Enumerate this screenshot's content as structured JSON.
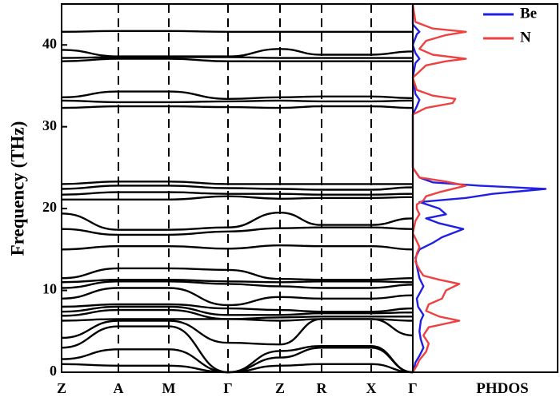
{
  "chart_data": [
    {
      "type": "line",
      "subtype": "phonon-band-structure",
      "ylabel": "Frequency (THz)",
      "ylim": [
        0,
        45
      ],
      "yticks": [
        0,
        10,
        20,
        30,
        40
      ],
      "x_path": [
        "Z",
        "A",
        "M",
        "Γ",
        "Z",
        "R",
        "X",
        "Γ"
      ],
      "high_symmetry_lines": "dashed",
      "line_color": "#000000",
      "bands": [
        {
          "values": [
            1.0,
            0.8,
            0.8,
            0.0,
            0.8,
            1.0,
            1.0,
            0.0
          ]
        },
        {
          "values": [
            1.6,
            2.8,
            2.8,
            0.0,
            1.8,
            3.0,
            3.0,
            0.0
          ]
        },
        {
          "values": [
            3.0,
            5.6,
            5.6,
            0.0,
            2.6,
            3.2,
            3.2,
            0.0
          ]
        },
        {
          "values": [
            4.2,
            6.3,
            6.3,
            3.6,
            3.4,
            6.5,
            6.5,
            4.5
          ]
        },
        {
          "values": [
            6.3,
            6.5,
            6.5,
            6.5,
            6.3,
            6.5,
            6.5,
            6.3
          ]
        },
        {
          "values": [
            6.9,
            7.6,
            7.6,
            6.5,
            6.7,
            6.8,
            6.8,
            6.8
          ]
        },
        {
          "values": [
            7.4,
            8.0,
            8.0,
            7.0,
            7.0,
            7.2,
            7.2,
            7.3
          ]
        },
        {
          "values": [
            8.0,
            8.3,
            8.3,
            7.8,
            7.6,
            7.4,
            7.4,
            7.8
          ]
        },
        {
          "values": [
            9.0,
            10.3,
            10.3,
            8.2,
            9.2,
            9.0,
            9.0,
            9.4
          ]
        },
        {
          "values": [
            10.3,
            11.1,
            11.1,
            10.8,
            10.5,
            10.3,
            10.3,
            10.7
          ]
        },
        {
          "values": [
            11.0,
            11.3,
            11.3,
            11.1,
            11.0,
            11.1,
            11.1,
            11.0
          ]
        },
        {
          "values": [
            11.5,
            12.7,
            12.7,
            12.5,
            11.4,
            11.3,
            11.3,
            11.5
          ]
        },
        {
          "values": [
            15.0,
            15.4,
            15.4,
            15.1,
            15.5,
            15.4,
            15.4,
            15.0
          ]
        },
        {
          "values": [
            17.5,
            16.8,
            16.8,
            17.2,
            17.6,
            17.7,
            17.7,
            17.5
          ]
        },
        {
          "values": [
            19.4,
            17.4,
            17.4,
            17.7,
            19.5,
            18.0,
            18.0,
            18.8
          ]
        },
        {
          "values": [
            21.1,
            21.1,
            21.1,
            21.5,
            21.2,
            21.3,
            21.3,
            21.4
          ]
        },
        {
          "values": [
            21.7,
            22.0,
            22.0,
            21.8,
            21.8,
            21.7,
            21.7,
            21.8
          ]
        },
        {
          "values": [
            22.4,
            22.8,
            22.8,
            22.5,
            22.4,
            22.3,
            22.3,
            22.6
          ]
        },
        {
          "values": [
            23.0,
            23.3,
            23.3,
            23.0,
            23.0,
            23.0,
            23.0,
            23.0
          ]
        },
        {
          "values": [
            32.3,
            32.5,
            32.5,
            32.4,
            32.3,
            32.5,
            32.5,
            32.3
          ]
        },
        {
          "values": [
            33.2,
            33.0,
            33.0,
            33.1,
            33.2,
            33.1,
            33.1,
            33.2
          ]
        },
        {
          "values": [
            33.6,
            34.3,
            34.3,
            33.4,
            33.6,
            33.7,
            33.7,
            33.5
          ]
        },
        {
          "values": [
            38.0,
            38.3,
            38.3,
            38.0,
            38.0,
            38.0,
            38.0,
            38.0
          ]
        },
        {
          "values": [
            38.4,
            38.5,
            38.5,
            38.5,
            38.4,
            38.4,
            38.4,
            38.4
          ]
        },
        {
          "values": [
            39.4,
            38.6,
            38.6,
            38.6,
            39.5,
            38.8,
            38.8,
            39.2
          ]
        },
        {
          "values": [
            41.6,
            41.7,
            41.7,
            41.6,
            41.6,
            41.6,
            41.6,
            41.6
          ]
        }
      ]
    },
    {
      "type": "line",
      "subtype": "phonon-density-of-states",
      "xlabel": "PHDOS",
      "ylim": [
        0,
        45
      ],
      "legend_position": "top-right",
      "series": [
        {
          "name": "Be",
          "color": "#1f1fe6",
          "points": [
            [
              0,
              0
            ],
            [
              0.01,
              0.5
            ],
            [
              0.02,
              1.2
            ],
            [
              0.05,
              2
            ],
            [
              0.08,
              3
            ],
            [
              0.06,
              4
            ],
            [
              0.05,
              5
            ],
            [
              0.06,
              6.3
            ],
            [
              0.08,
              7
            ],
            [
              0.04,
              8
            ],
            [
              0.03,
              9
            ],
            [
              0.08,
              10.5
            ],
            [
              0.05,
              11.5
            ],
            [
              0.03,
              13
            ],
            [
              0.02,
              14
            ],
            [
              0.05,
              15
            ],
            [
              0.15,
              15.8
            ],
            [
              0.22,
              16.5
            ],
            [
              0.38,
              17.5
            ],
            [
              0.2,
              18.2
            ],
            [
              0.1,
              18.8
            ],
            [
              0.25,
              19.3
            ],
            [
              0.2,
              20
            ],
            [
              0.05,
              20.8
            ],
            [
              0.4,
              21.3
            ],
            [
              0.6,
              21.8
            ],
            [
              1.0,
              22.4
            ],
            [
              0.5,
              22.8
            ],
            [
              0.15,
              23.2
            ],
            [
              0.05,
              23.8
            ],
            [
              0.0,
              25
            ],
            [
              0.0,
              31.5
            ],
            [
              0.03,
              32.5
            ],
            [
              0.05,
              33.3
            ],
            [
              0.02,
              34
            ],
            [
              0.0,
              36
            ],
            [
              0.02,
              37.8
            ],
            [
              0.05,
              38.3
            ],
            [
              0.02,
              39
            ],
            [
              0.0,
              40
            ],
            [
              0.03,
              41.3
            ],
            [
              0.05,
              41.6
            ],
            [
              0.0,
              42.5
            ],
            [
              0.0,
              45
            ]
          ]
        },
        {
          "name": "N",
          "color": "#ee4040",
          "points": [
            [
              0,
              0
            ],
            [
              0.03,
              0.8
            ],
            [
              0.05,
              1.5
            ],
            [
              0.1,
              2.5
            ],
            [
              0.12,
              3.5
            ],
            [
              0.08,
              4.5
            ],
            [
              0.12,
              5.5
            ],
            [
              0.35,
              6.3
            ],
            [
              0.2,
              6.8
            ],
            [
              0.1,
              7.5
            ],
            [
              0.12,
              8.3
            ],
            [
              0.22,
              9
            ],
            [
              0.25,
              10
            ],
            [
              0.35,
              10.8
            ],
            [
              0.2,
              11.3
            ],
            [
              0.08,
              11.8
            ],
            [
              0.05,
              12.5
            ],
            [
              0.02,
              13.5
            ],
            [
              0.03,
              14.5
            ],
            [
              0.05,
              15.3
            ],
            [
              0.03,
              16
            ],
            [
              0.0,
              17
            ],
            [
              0.02,
              18.5
            ],
            [
              0.05,
              19.3
            ],
            [
              0.03,
              20
            ],
            [
              0.03,
              20.5
            ],
            [
              0.08,
              21
            ],
            [
              0.1,
              21.5
            ],
            [
              0.2,
              22
            ],
            [
              0.4,
              22.8
            ],
            [
              0.25,
              23.3
            ],
            [
              0.05,
              23.8
            ],
            [
              0.0,
              25
            ],
            [
              0.0,
              31.5
            ],
            [
              0.1,
              32.3
            ],
            [
              0.3,
              32.9
            ],
            [
              0.32,
              33.4
            ],
            [
              0.15,
              33.8
            ],
            [
              0.03,
              34.5
            ],
            [
              0.0,
              36
            ],
            [
              0.1,
              37.5
            ],
            [
              0.25,
              38
            ],
            [
              0.4,
              38.3
            ],
            [
              0.15,
              38.8
            ],
            [
              0.05,
              39.5
            ],
            [
              0.1,
              40.5
            ],
            [
              0.25,
              41.2
            ],
            [
              0.4,
              41.6
            ],
            [
              0.15,
              42
            ],
            [
              0.02,
              42.8
            ],
            [
              0.0,
              45
            ]
          ]
        }
      ]
    }
  ],
  "icons": [
    "Γ"
  ]
}
